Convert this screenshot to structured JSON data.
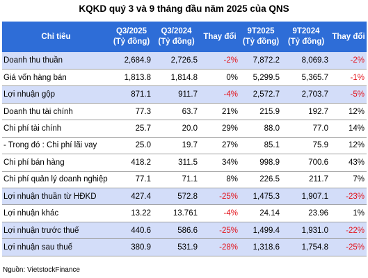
{
  "title": "KQKD quý 3 và 9 tháng đầu năm 2025 của QNS",
  "headers": [
    {
      "l1": "Chỉ tiêu",
      "l2": ""
    },
    {
      "l1": "Q3/2025",
      "l2": "(Tỷ đồng)"
    },
    {
      "l1": "Q3/2024",
      "l2": "(Tỷ đồng)"
    },
    {
      "l1": "Thay đổi",
      "l2": ""
    },
    {
      "l1": "9T2025",
      "l2": "(Tỷ đồng)"
    },
    {
      "l1": "9T2024",
      "l2": "(Tỷ đồng)"
    },
    {
      "l1": "Thay đổi",
      "l2": ""
    }
  ],
  "rows": [
    {
      "label": "Doanh thu thuần",
      "highlight": true,
      "q3_2025": "2,684.9",
      "q3_2024": "2,726.5",
      "chg_q": "-2%",
      "t9_2025": "7,872.2",
      "t9_2024": "8,069.3",
      "chg_9t": "-2%"
    },
    {
      "label": "Giá vốn hàng bán",
      "highlight": false,
      "q3_2025": "1,813.8",
      "q3_2024": "1,814.8",
      "chg_q": "0%",
      "t9_2025": "5,299.5",
      "t9_2024": "5,365.7",
      "chg_9t": "-1%"
    },
    {
      "label": "Lợi nhuận gộp",
      "highlight": true,
      "q3_2025": "871.1",
      "q3_2024": "911.7",
      "chg_q": "-4%",
      "t9_2025": "2,572.7",
      "t9_2024": "2,703.7",
      "chg_9t": "-5%"
    },
    {
      "label": "Doanh thu tài chính",
      "highlight": false,
      "q3_2025": "77.3",
      "q3_2024": "63.7",
      "chg_q": "21%",
      "t9_2025": "215.9",
      "t9_2024": "192.7",
      "chg_9t": "12%"
    },
    {
      "label": "Chi phí tài chính",
      "highlight": false,
      "q3_2025": "25.7",
      "q3_2024": "20.0",
      "chg_q": "29%",
      "t9_2025": "88.0",
      "t9_2024": "77.0",
      "chg_9t": "14%"
    },
    {
      "label": "- Trong đó : Chi phí lãi vay",
      "highlight": false,
      "q3_2025": "25.0",
      "q3_2024": "19.7",
      "chg_q": "27%",
      "t9_2025": "85.1",
      "t9_2024": "75.9",
      "chg_9t": "12%"
    },
    {
      "label": "Chi phí bán hàng",
      "highlight": false,
      "q3_2025": "418.2",
      "q3_2024": "311.5",
      "chg_q": "34%",
      "t9_2025": "998.9",
      "t9_2024": "700.6",
      "chg_9t": "43%"
    },
    {
      "label": "Chi phí quản lý doanh nghiệp",
      "highlight": false,
      "q3_2025": "77.1",
      "q3_2024": "71.1",
      "chg_q": "8%",
      "t9_2025": "226.5",
      "t9_2024": "211.7",
      "chg_9t": "7%"
    },
    {
      "label": "Lợi nhuận thuần từ HĐKD",
      "highlight": true,
      "q3_2025": "427.4",
      "q3_2024": "572.8",
      "chg_q": "-25%",
      "t9_2025": "1,475.3",
      "t9_2024": "1,907.1",
      "chg_9t": "-23%"
    },
    {
      "label": "Lợi nhuận khác",
      "highlight": false,
      "q3_2025": "13.22",
      "q3_2024": "13.761",
      "chg_q": "-4%",
      "t9_2025": "24.14",
      "t9_2024": "23.96",
      "chg_9t": "1%"
    },
    {
      "label": "Lợi nhuận trước thuế",
      "highlight": true,
      "q3_2025": "440.6",
      "q3_2024": "586.6",
      "chg_q": "-25%",
      "t9_2025": "1,499.4",
      "t9_2024": "1,931.0",
      "chg_9t": "-22%"
    },
    {
      "label": "Lợi nhuận sau thuế",
      "highlight": true,
      "q3_2025": "380.9",
      "q3_2024": "531.9",
      "chg_q": "-28%",
      "t9_2025": "1,318.6",
      "t9_2024": "1,754.8",
      "chg_9t": "-25%"
    }
  ],
  "source": "Nguồn: VietstockFinance",
  "colors": {
    "header_bg": "#2e6dd7",
    "header_text": "#ffffff",
    "highlight_row": "#d3ddf9",
    "negative": "#e3131b",
    "row_border": "#9e9e9e"
  }
}
